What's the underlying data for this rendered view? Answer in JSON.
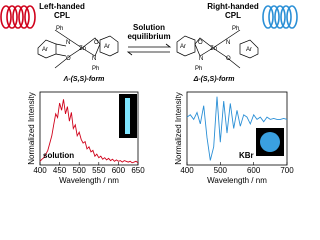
{
  "scheme": {
    "left_cpl": [
      "Left-handed",
      "CPL"
    ],
    "right_cpl": [
      "Right-handed",
      "CPL"
    ],
    "equilibrium": [
      "Solution",
      "equilibrium"
    ],
    "left_form": "Λ-(S,S)-form",
    "right_form": "Δ-(S,S)-form",
    "atoms": {
      "zn": "Zn",
      "o": "O",
      "n": "N",
      "ar": "Ar",
      "ph": "Ph"
    }
  },
  "chart_data": [
    {
      "type": "line",
      "xlabel": "Wavelength / nm",
      "ylabel": "Normalized Intensity",
      "annotation": "solution",
      "color": "#d0021b",
      "x": [
        400,
        405,
        410,
        415,
        420,
        425,
        430,
        435,
        440,
        445,
        450,
        455,
        460,
        465,
        470,
        475,
        480,
        485,
        490,
        495,
        500,
        505,
        510,
        515,
        520,
        525,
        530,
        535,
        540,
        545,
        550,
        555,
        560,
        565,
        570,
        575,
        580,
        585,
        590,
        595,
        600,
        605,
        610,
        615,
        620,
        625,
        630,
        635,
        640,
        645,
        650
      ],
      "values": [
        0.05,
        0.08,
        0.1,
        0.15,
        0.2,
        0.3,
        0.4,
        0.55,
        0.7,
        0.65,
        0.85,
        0.75,
        0.9,
        0.7,
        0.8,
        0.6,
        0.72,
        0.5,
        0.55,
        0.4,
        0.45,
        0.35,
        0.3,
        0.32,
        0.22,
        0.25,
        0.18,
        0.2,
        0.12,
        0.15,
        0.1,
        0.12,
        0.08,
        0.1,
        0.07,
        0.09,
        0.06,
        0.08,
        0.05,
        0.07,
        0.05,
        0.06,
        0.04,
        0.06,
        0.05,
        0.04,
        0.05,
        0.03,
        0.04,
        0.05,
        0.03
      ],
      "xlim": [
        400,
        650
      ],
      "xticks": [
        400,
        450,
        500,
        550,
        600,
        650
      ],
      "ylim": [
        0,
        1
      ]
    },
    {
      "type": "line",
      "xlabel": "Wavelength / nm",
      "ylabel": "Normalized Intensity",
      "annotation": "KBr",
      "color": "#2a8fd6",
      "x": [
        400,
        410,
        420,
        430,
        440,
        450,
        460,
        470,
        480,
        490,
        500,
        510,
        520,
        530,
        540,
        550,
        560,
        570,
        580,
        590,
        600,
        610,
        620,
        630,
        640,
        650,
        660,
        670,
        680,
        690,
        700
      ],
      "values": [
        0.05,
        0.1,
        0.0,
        0.15,
        -0.1,
        0.3,
        -0.4,
        -0.9,
        -0.6,
        0.5,
        -0.5,
        0.4,
        -0.3,
        0.35,
        -0.2,
        0.2,
        -0.15,
        0.1,
        0.05,
        -0.1,
        0.1,
        0.0,
        0.05,
        -0.05,
        0.05,
        0,
        0.02,
        0,
        0,
        0.02,
        0
      ],
      "xlim": [
        400,
        700
      ],
      "xticks": [
        400,
        500,
        600,
        700
      ],
      "ylim": [
        -1,
        0.6
      ]
    }
  ]
}
